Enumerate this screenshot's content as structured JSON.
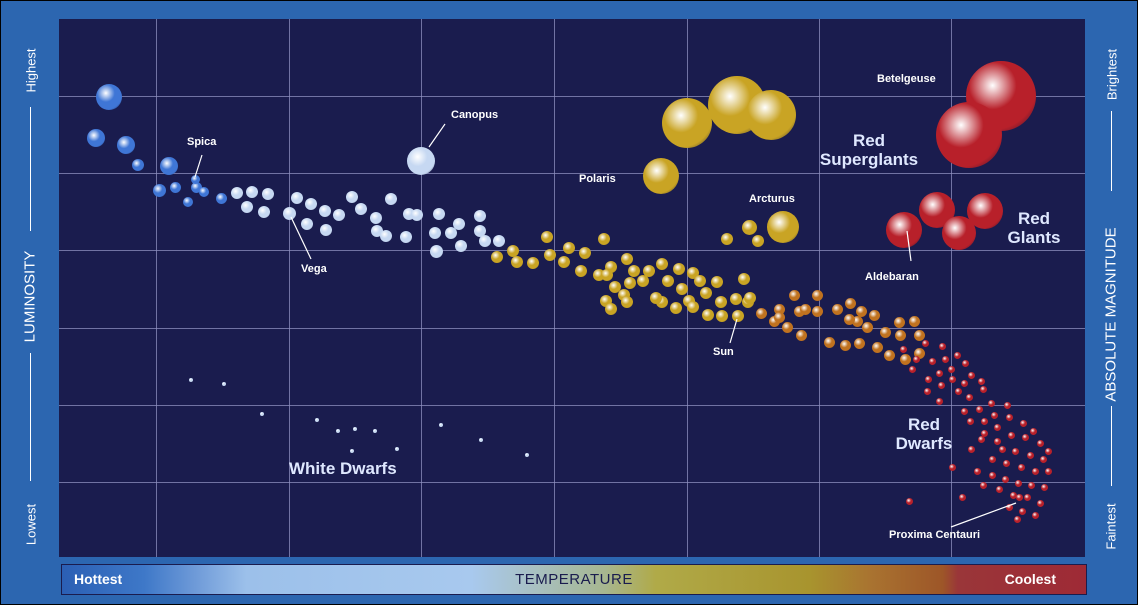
{
  "colors": {
    "background": "#1a1c4e",
    "frame": "#2c66b0",
    "grid": "#8f90c0",
    "hot_star": "#3f76d6",
    "white_star": "#c6d8f2",
    "yellow_star": "#c9a424",
    "red_star": "#b8202a"
  },
  "y_axis_left": {
    "top": "Highest",
    "title": "LUMINOSITY",
    "bottom": "Lowest"
  },
  "y_axis_right": {
    "top": "Brightest",
    "title": "ABSOLUTE MAGNITUDE",
    "bottom": "Faintest"
  },
  "temperature_bar": {
    "left": "Hottest",
    "center": "TEMPERATURE",
    "right": "Coolest"
  },
  "star_labels": {
    "spica": "Spica",
    "canopus": "Canopus",
    "vega": "Vega",
    "polaris": "Polaris",
    "betelgeuse": "Betelgeuse",
    "arcturus": "Arcturus",
    "aldebaran": "Aldebaran",
    "sun": "Sun",
    "proxima": "Proxima Centauri"
  },
  "groups": {
    "red_supergiants": [
      "Red",
      "Superglants"
    ],
    "red_giants": [
      "Red",
      "Glants"
    ],
    "red_dwarfs": [
      "Red",
      "Dwarfs"
    ],
    "white_dwarfs": "White Dwarfs"
  }
}
